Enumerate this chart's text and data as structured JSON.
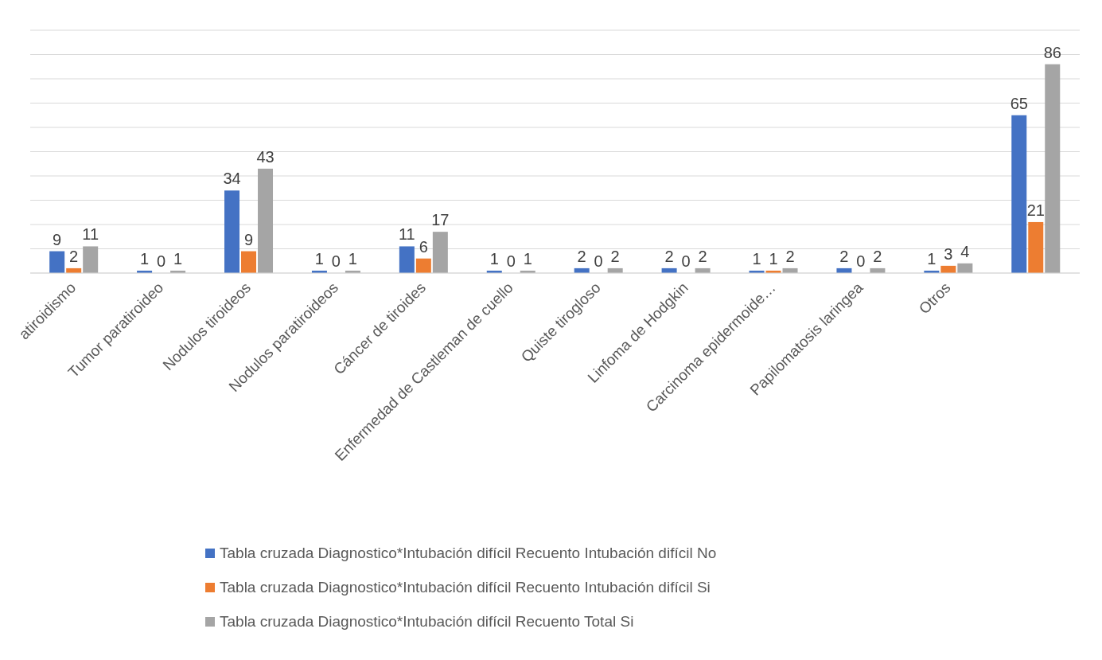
{
  "chart_data": {
    "type": "bar",
    "categories": [
      "atiroidismo",
      "Tumor paratiroideo",
      "Nodulos tiroideos",
      "Nodulos paratiroideos",
      "Cáncer de tiroides",
      "Enfermedad de Castleman de cuello",
      "Quiste tirogloso",
      "Linfoma de Hodgkin",
      "Carcinoma epidermoide…",
      "Papilomatosis laringea",
      "Otros",
      null
    ],
    "series": [
      {
        "name": "Tabla cruzada Diagnostico*Intubación difícil Recuento Intubación difícil No",
        "color": "#4472c4",
        "values": [
          9,
          1,
          34,
          1,
          11,
          1,
          2,
          2,
          1,
          2,
          1,
          65
        ]
      },
      {
        "name": "Tabla cruzada Diagnostico*Intubación difícil Recuento Intubación difícil Si",
        "color": "#ed7d31",
        "values": [
          2,
          0,
          9,
          0,
          6,
          0,
          0,
          0,
          1,
          0,
          3,
          21
        ]
      },
      {
        "name": "Tabla cruzada Diagnostico*Intubación difícil Recuento Total Si",
        "color": "#a5a5a5",
        "values": [
          11,
          1,
          43,
          1,
          17,
          1,
          2,
          2,
          2,
          2,
          4,
          86
        ]
      }
    ],
    "ylim": [
      0,
      100
    ],
    "tick_labels": "x",
    "grid": "y",
    "data_labels": true,
    "legend": "bottom"
  }
}
